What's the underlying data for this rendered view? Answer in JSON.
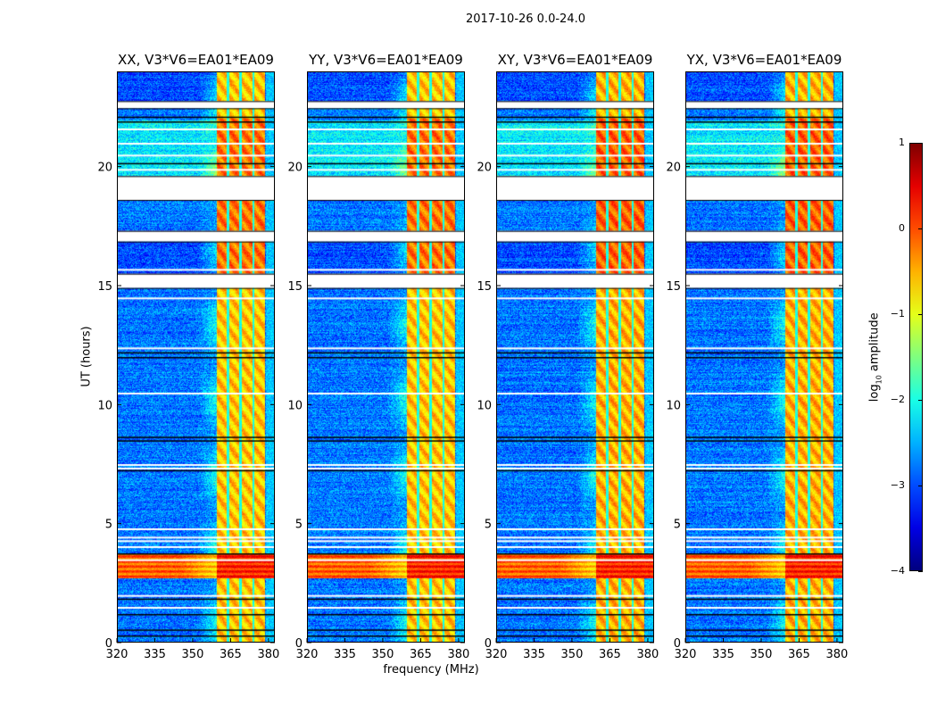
{
  "chart_data": {
    "type": "heatmap",
    "suptitle": "2017-10-26 0.0-24.0",
    "xlabel": "frequency (MHz)",
    "ylabel": "UT (hours)",
    "xlim": [
      320,
      382.5
    ],
    "ylim": [
      0,
      24
    ],
    "xticks": [
      "320",
      "335",
      "350",
      "365",
      "380"
    ],
    "xtick_values": [
      320,
      335,
      350,
      365,
      380
    ],
    "yticks": [
      "0",
      "5",
      "10",
      "15",
      "20"
    ],
    "ytick_values": [
      0,
      5,
      10,
      15,
      20
    ],
    "panels": [
      {
        "title": "XX, V3*V6=EA01*EA09",
        "pol": "XX"
      },
      {
        "title": "YY, V3*V6=EA01*EA09",
        "pol": "YY"
      },
      {
        "title": "XY, V3*V6=EA01*EA09",
        "pol": "XY"
      },
      {
        "title": "YX, V3*V6=EA01*EA09",
        "pol": "YX"
      }
    ],
    "colorbar": {
      "label": "log10 amplitude",
      "label_main": "log",
      "label_sub": "10",
      "label_rest": " amplitude",
      "range": [
        -4,
        1
      ],
      "ticks": [
        "1",
        "0",
        "−1",
        "−2",
        "−3",
        "−4"
      ],
      "tick_values": [
        1,
        0,
        -1,
        -2,
        -3,
        -4
      ],
      "colormap": "jet"
    },
    "features": {
      "background_level": -2.8,
      "bright_band_mhz": [
        359.6,
        378.7
      ],
      "bright_band_level": -0.6,
      "subband_gaps_mhz": [
        363.9,
        369.0,
        374.0
      ],
      "rfi_time_band_hours": [
        2.7,
        3.7
      ],
      "rfi_level": 0.3,
      "flagged_gaps_hours": [
        [
          22.45,
          22.75
        ],
        [
          18.6,
          19.6
        ],
        [
          16.85,
          17.3
        ],
        [
          14.9,
          15.5
        ]
      ],
      "white_lines_hours": [
        21.6,
        21.0,
        20.5,
        19.9,
        15.7,
        14.5,
        12.4,
        10.5,
        7.5,
        7.35,
        4.8,
        4.45,
        4.3,
        4.05,
        3.5,
        2.0,
        1.5
      ],
      "black_lines_hours": [
        22.1,
        21.9,
        20.15,
        12.2,
        12.0,
        8.65,
        8.5,
        7.25,
        3.75,
        1.85,
        1.2,
        0.55,
        0.3
      ]
    }
  }
}
